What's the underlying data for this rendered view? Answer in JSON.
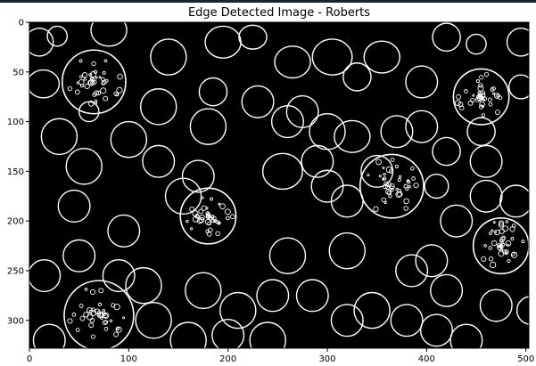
{
  "title": "Edge Detected Image - Roberts",
  "axes": {
    "x_ticks": [
      0,
      100,
      200,
      300,
      400,
      500
    ],
    "y_ticks": [
      0,
      50,
      100,
      150,
      200,
      250,
      300
    ],
    "x_range": [
      0,
      503
    ],
    "y_range": [
      0,
      328
    ]
  },
  "colors": {
    "image_background": "#000000",
    "edges": "#ffffff",
    "axes": "#000000"
  },
  "image": {
    "description_icon": "edge-detected-cells"
  }
}
